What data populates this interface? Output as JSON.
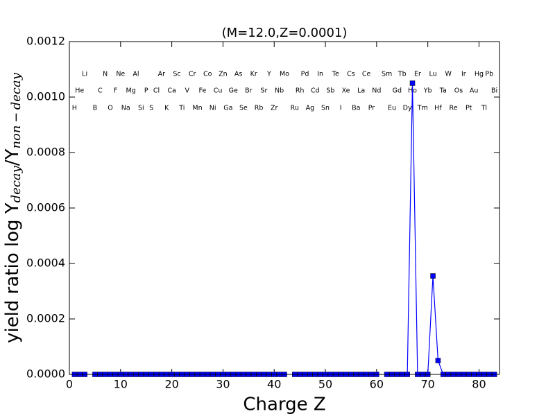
{
  "chart_data": {
    "type": "line",
    "title": "(M=12.0,Z=0.0001)",
    "xlabel": "Charge Z",
    "ylabel_parts": [
      "yield ratio log Y",
      "decay",
      "/Y",
      "non − decay"
    ],
    "x": [
      1,
      2,
      3,
      4,
      5,
      6,
      7,
      8,
      9,
      10,
      11,
      12,
      13,
      14,
      15,
      16,
      17,
      18,
      19,
      20,
      21,
      22,
      23,
      24,
      25,
      26,
      27,
      28,
      29,
      30,
      31,
      32,
      33,
      34,
      35,
      36,
      37,
      38,
      39,
      40,
      41,
      42,
      43,
      44,
      45,
      46,
      47,
      48,
      49,
      50,
      51,
      52,
      53,
      54,
      55,
      56,
      57,
      58,
      59,
      60,
      61,
      62,
      63,
      64,
      65,
      66,
      67,
      68,
      69,
      70,
      71,
      72,
      73,
      74,
      75,
      76,
      77,
      78,
      79,
      80,
      81,
      82,
      83
    ],
    "series": [
      {
        "color": "#0000ff",
        "values": [
          0,
          0,
          0,
          null,
          0,
          0,
          0,
          0,
          0,
          0,
          0,
          0,
          0,
          0,
          0,
          0,
          0,
          0,
          0,
          0,
          0,
          0,
          0,
          0,
          0,
          0,
          0,
          0,
          0,
          0,
          0,
          0,
          0,
          0,
          0,
          0,
          0,
          0,
          0,
          0,
          0,
          0,
          null,
          0,
          0,
          0,
          0,
          0,
          0,
          0,
          0,
          0,
          0,
          0,
          0,
          0,
          0,
          0,
          0,
          0,
          null,
          0,
          0,
          0,
          0,
          0,
          0.00105,
          0,
          0,
          0,
          0.000355,
          5e-05,
          0,
          0,
          0,
          0,
          0,
          0,
          0,
          0,
          0,
          0,
          0
        ]
      }
    ],
    "xlim": [
      0,
      84
    ],
    "xticks": [
      0,
      10,
      20,
      30,
      40,
      50,
      60,
      70,
      80
    ],
    "ylim": [
      0,
      0.0012
    ],
    "yticks": [
      {
        "value": 0,
        "label": "0.0000"
      },
      {
        "value": 0.0002,
        "label": "0.0002"
      },
      {
        "value": 0.0004,
        "label": "0.0004"
      },
      {
        "value": 0.0006,
        "label": "0.0006"
      },
      {
        "value": 0.0008,
        "label": "0.0008"
      },
      {
        "value": 0.001,
        "label": "0.0010"
      },
      {
        "value": 0.0012,
        "label": "0.0012"
      }
    ],
    "element_rows": [
      [
        {
          "z": 3,
          "label": "Li"
        },
        {
          "z": 7,
          "label": "N"
        },
        {
          "z": 10,
          "label": "Ne"
        },
        {
          "z": 13,
          "label": "Al"
        },
        {
          "z": 18,
          "label": "Ar"
        },
        {
          "z": 21,
          "label": "Sc"
        },
        {
          "z": 24,
          "label": "Cr"
        },
        {
          "z": 27,
          "label": "Co"
        },
        {
          "z": 30,
          "label": "Zn"
        },
        {
          "z": 33,
          "label": "As"
        },
        {
          "z": 36,
          "label": "Kr"
        },
        {
          "z": 39,
          "label": "Y"
        },
        {
          "z": 42,
          "label": "Mo"
        },
        {
          "z": 46,
          "label": "Pd"
        },
        {
          "z": 49,
          "label": "In"
        },
        {
          "z": 52,
          "label": "Te"
        },
        {
          "z": 55,
          "label": "Cs"
        },
        {
          "z": 58,
          "label": "Ce"
        },
        {
          "z": 62,
          "label": "Sm"
        },
        {
          "z": 65,
          "label": "Tb"
        },
        {
          "z": 68,
          "label": "Er"
        },
        {
          "z": 71,
          "label": "Lu"
        },
        {
          "z": 74,
          "label": "W"
        },
        {
          "z": 77,
          "label": "Ir"
        },
        {
          "z": 80,
          "label": "Hg"
        },
        {
          "z": 82,
          "label": "Pb"
        }
      ],
      [
        {
          "z": 2,
          "label": "He"
        },
        {
          "z": 6,
          "label": "C"
        },
        {
          "z": 9,
          "label": "F"
        },
        {
          "z": 12,
          "label": "Mg"
        },
        {
          "z": 15,
          "label": "P"
        },
        {
          "z": 17,
          "label": "Cl"
        },
        {
          "z": 20,
          "label": "Ca"
        },
        {
          "z": 23,
          "label": "V"
        },
        {
          "z": 26,
          "label": "Fe"
        },
        {
          "z": 29,
          "label": "Cu"
        },
        {
          "z": 32,
          "label": "Ge"
        },
        {
          "z": 35,
          "label": "Br"
        },
        {
          "z": 38,
          "label": "Sr"
        },
        {
          "z": 41,
          "label": "Nb"
        },
        {
          "z": 45,
          "label": "Rh"
        },
        {
          "z": 48,
          "label": "Cd"
        },
        {
          "z": 51,
          "label": "Sb"
        },
        {
          "z": 54,
          "label": "Xe"
        },
        {
          "z": 57,
          "label": "La"
        },
        {
          "z": 60,
          "label": "Nd"
        },
        {
          "z": 64,
          "label": "Gd"
        },
        {
          "z": 67,
          "label": "Ho"
        },
        {
          "z": 70,
          "label": "Yb"
        },
        {
          "z": 73,
          "label": "Ta"
        },
        {
          "z": 76,
          "label": "Os"
        },
        {
          "z": 79,
          "label": "Au"
        },
        {
          "z": 83,
          "label": "Bi"
        }
      ],
      [
        {
          "z": 1,
          "label": "H"
        },
        {
          "z": 5,
          "label": "B"
        },
        {
          "z": 8,
          "label": "O"
        },
        {
          "z": 11,
          "label": "Na"
        },
        {
          "z": 14,
          "label": "Si"
        },
        {
          "z": 16,
          "label": "S"
        },
        {
          "z": 19,
          "label": "K"
        },
        {
          "z": 22,
          "label": "Ti"
        },
        {
          "z": 25,
          "label": "Mn"
        },
        {
          "z": 28,
          "label": "Ni"
        },
        {
          "z": 31,
          "label": "Ga"
        },
        {
          "z": 34,
          "label": "Se"
        },
        {
          "z": 37,
          "label": "Rb"
        },
        {
          "z": 40,
          "label": "Zr"
        },
        {
          "z": 44,
          "label": "Ru"
        },
        {
          "z": 47,
          "label": "Ag"
        },
        {
          "z": 50,
          "label": "Sn"
        },
        {
          "z": 53,
          "label": "I"
        },
        {
          "z": 56,
          "label": "Ba"
        },
        {
          "z": 59,
          "label": "Pr"
        },
        {
          "z": 63,
          "label": "Eu"
        },
        {
          "z": 66,
          "label": "Dy"
        },
        {
          "z": 69,
          "label": "Tm"
        },
        {
          "z": 72,
          "label": "Hf"
        },
        {
          "z": 75,
          "label": "Re"
        },
        {
          "z": 78,
          "label": "Pt"
        },
        {
          "z": 81,
          "label": "Tl"
        }
      ]
    ]
  }
}
